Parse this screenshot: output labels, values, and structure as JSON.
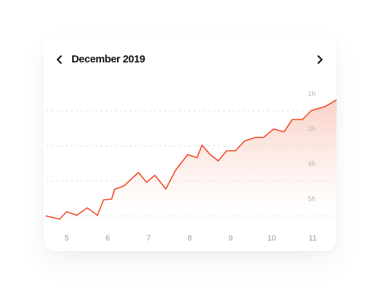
{
  "header": {
    "month_label": "December 2019",
    "prev_icon": "chevron-left-icon",
    "next_icon": "chevron-right-icon"
  },
  "colors": {
    "line": "#f0451f",
    "fill_top": "#f6b8a8",
    "grid": "#dcdcdc",
    "title": "#111111"
  },
  "chart_data": {
    "type": "area",
    "title": "December 2019",
    "x_tick_labels": [
      "5",
      "6",
      "7",
      "8",
      "9",
      "10",
      "11"
    ],
    "y_tick_labels": [
      "1h",
      "3h",
      "4h",
      "5h"
    ],
    "y_axis": "reversed",
    "grid": "horizontal dashed",
    "xlim": [
      4.5,
      11.6
    ],
    "series": [
      {
        "x": [
          4.5,
          4.83,
          5.0,
          5.25,
          5.5,
          5.75,
          5.9,
          6.1,
          6.17,
          6.4,
          6.75,
          6.95,
          7.15,
          7.42,
          7.65,
          7.95,
          8.18,
          8.3,
          8.5,
          8.7,
          8.9,
          9.12,
          9.34,
          9.6,
          9.8,
          10.05,
          10.3,
          10.5,
          10.75,
          10.97,
          11.3,
          11.6
        ],
        "y": [
          5.0,
          5.09,
          4.88,
          4.98,
          4.77,
          4.98,
          4.54,
          4.52,
          4.24,
          4.14,
          3.76,
          4.04,
          3.84,
          4.23,
          3.71,
          3.25,
          3.34,
          2.98,
          3.25,
          3.43,
          3.14,
          3.14,
          2.86,
          2.76,
          2.76,
          2.52,
          2.6,
          2.25,
          2.25,
          1.99,
          1.88,
          1.69
        ]
      }
    ]
  }
}
